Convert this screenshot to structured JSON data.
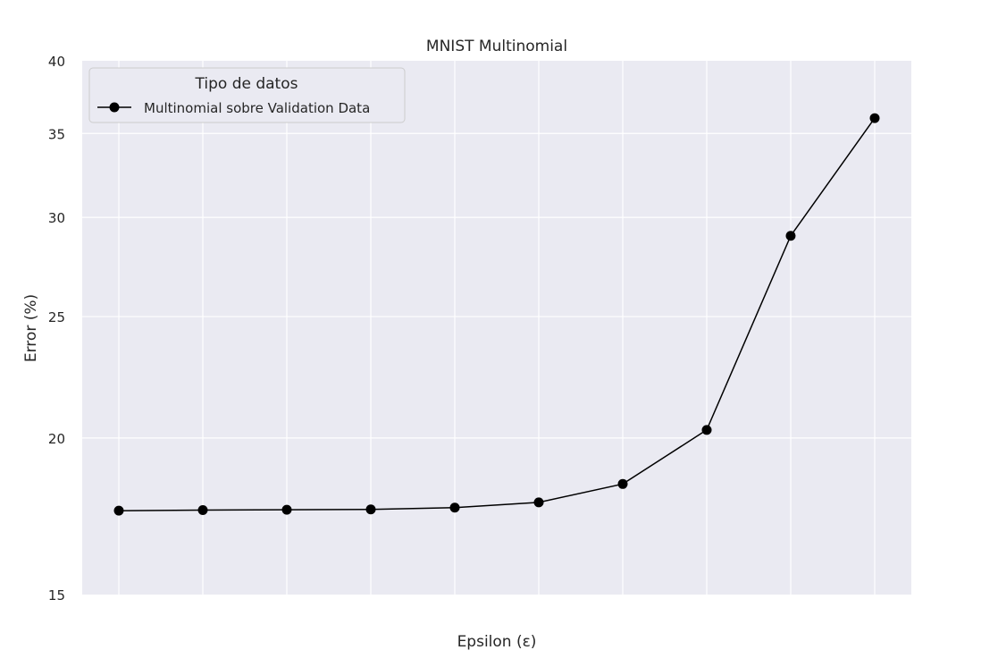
{
  "chart_data": {
    "type": "line",
    "title": "MNIST Multinomial",
    "xlabel": "Epsilon (ε)",
    "ylabel": "Error (%)",
    "y_scale": "log",
    "ylim": [
      15,
      40
    ],
    "yticks": [
      15,
      20,
      25,
      30,
      35,
      40
    ],
    "x_ticks_labeled": false,
    "grid": true,
    "legend": {
      "title": "Tipo de datos",
      "placement": "top-left"
    },
    "series": [
      {
        "name": "Multinomial sobre Validation Data",
        "color": "#000000",
        "marker": "circle",
        "values": [
          17.5,
          17.52,
          17.53,
          17.54,
          17.6,
          17.77,
          18.38,
          20.3,
          29.0,
          36.0
        ]
      }
    ]
  },
  "colors": {
    "plot_background": "#eaeaf2",
    "grid": "#ffffff",
    "text": "#262626"
  }
}
